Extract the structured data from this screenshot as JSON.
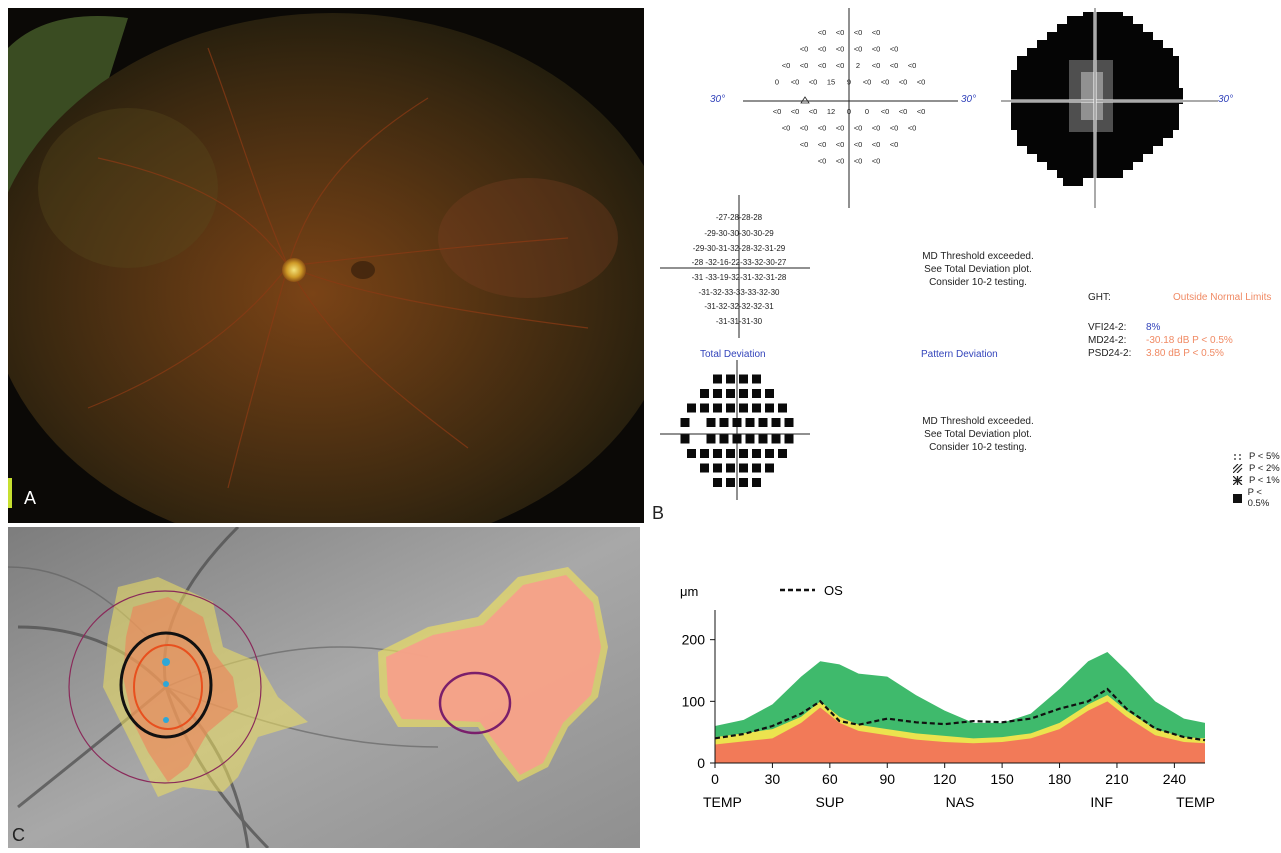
{
  "panels": {
    "a": "A",
    "b": "B",
    "c": "C"
  },
  "visual_field": {
    "axis_left": "30°",
    "axis_mid": "30°",
    "axis_right": "30°",
    "threshold_rows": [
      [
        "<0",
        "<0",
        "<0",
        "<0"
      ],
      [
        "<0",
        "<0",
        "<0",
        "<0",
        "<0",
        "<0"
      ],
      [
        "<0",
        "<0",
        "<0",
        "<0",
        "2",
        "<0",
        "<0",
        "<0"
      ],
      [
        "0",
        "<0",
        "<0",
        "15",
        "9",
        "<0",
        "<0",
        "<0",
        "<0"
      ],
      [
        "<0",
        "<0",
        "<0",
        "12",
        "0",
        "0",
        "<0",
        "<0",
        "<0"
      ],
      [
        "<0",
        "<0",
        "<0",
        "<0",
        "<0",
        "<0",
        "<0",
        "<0"
      ],
      [
        "<0",
        "<0",
        "<0",
        "<0",
        "<0",
        "<0"
      ],
      [
        "<0",
        "<0",
        "<0",
        "<0"
      ]
    ],
    "total_deviation_rows": [
      "-27-28-28-28",
      "-29-30-30-30-30-29",
      "-29-30-31-32-28-32-31-29",
      "-28   -32-16-22-33-32-30-27",
      "-31   -33-19-32-31-32-31-28",
      "-31-32-33-33-33-32-30",
      "-31-32-32-32-32-31",
      "-31-31-31-30"
    ],
    "total_deviation_label": "Total Deviation",
    "pattern_deviation_label": "Pattern Deviation",
    "message_top": [
      "MD Threshold exceeded.",
      "See Total Deviation plot.",
      "Consider 10-2 testing."
    ],
    "message_bottom": [
      "MD Threshold exceeded.",
      "See Total Deviation plot.",
      "Consider 10-2 testing."
    ],
    "ght_label": "GHT:",
    "ght_value": "Outside Normal Limits",
    "vfi_label": "VFI24-2:",
    "vfi_value": "8%",
    "md_label": "MD24-2:",
    "md_value": "-30.18 dB P < 0.5%",
    "psd_label": "PSD24-2:",
    "psd_value": "3.80 dB P < 0.5%",
    "legend": [
      "P < 5%",
      "P < 2%",
      "P < 1%",
      "P < 0.5%"
    ],
    "colors": {
      "blue": "#3344bb",
      "orange": "#f08a64"
    }
  },
  "chart_data": {
    "type": "area",
    "ylabel": "μm",
    "legend": "OS",
    "x_ticks": [
      0,
      30,
      60,
      90,
      120,
      150,
      180,
      210,
      240
    ],
    "y_ticks": [
      0,
      100,
      200
    ],
    "xlim": [
      0,
      256
    ],
    "ylim": [
      0,
      240
    ],
    "region_labels": [
      "TEMP",
      "SUP",
      "NAS",
      "INF",
      "TEMP"
    ],
    "x": [
      0,
      15,
      30,
      45,
      55,
      65,
      75,
      90,
      105,
      120,
      135,
      150,
      165,
      180,
      195,
      205,
      215,
      230,
      245,
      256
    ],
    "series": [
      {
        "values": [
          60,
          70,
          95,
          140,
          165,
          160,
          145,
          140,
          110,
          85,
          65,
          65,
          80,
          120,
          165,
          180,
          150,
          100,
          72,
          65
        ]
      },
      {
        "values": [
          42,
          48,
          55,
          75,
          100,
          75,
          62,
          55,
          48,
          44,
          40,
          42,
          48,
          65,
          95,
          110,
          85,
          55,
          42,
          40
        ]
      },
      {
        "values": [
          30,
          35,
          40,
          65,
          90,
          65,
          52,
          45,
          38,
          34,
          32,
          34,
          40,
          55,
          85,
          100,
          75,
          45,
          34,
          32
        ]
      },
      {
        "name": "OS",
        "values": [
          40,
          47,
          60,
          80,
          100,
          68,
          62,
          72,
          66,
          63,
          68,
          66,
          72,
          88,
          100,
          120,
          88,
          56,
          42,
          37
        ]
      }
    ],
    "colors": {
      "green": "#3fba6c",
      "yellow": "#ece34e",
      "red": "#f27a58",
      "os_line": "#111111"
    }
  }
}
